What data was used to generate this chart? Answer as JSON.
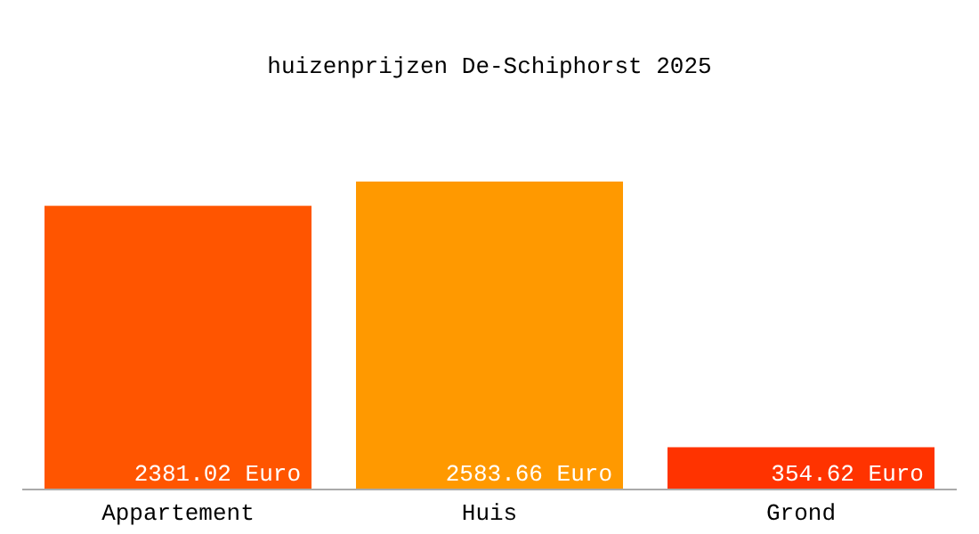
{
  "chart_data": {
    "type": "bar",
    "title": "huizenprijzen De-Schiphorst 2025",
    "categories": [
      "Appartement",
      "Huis",
      "Grond"
    ],
    "values": [
      2381.02,
      2583.66,
      354.62
    ],
    "colors": [
      "#ff5500",
      "#ff9900",
      "#ff3300"
    ],
    "value_labels": [
      "2381.02 Euro",
      "2583.66 Euro",
      "354.62 Euro"
    ],
    "grid": false,
    "legend": false
  }
}
